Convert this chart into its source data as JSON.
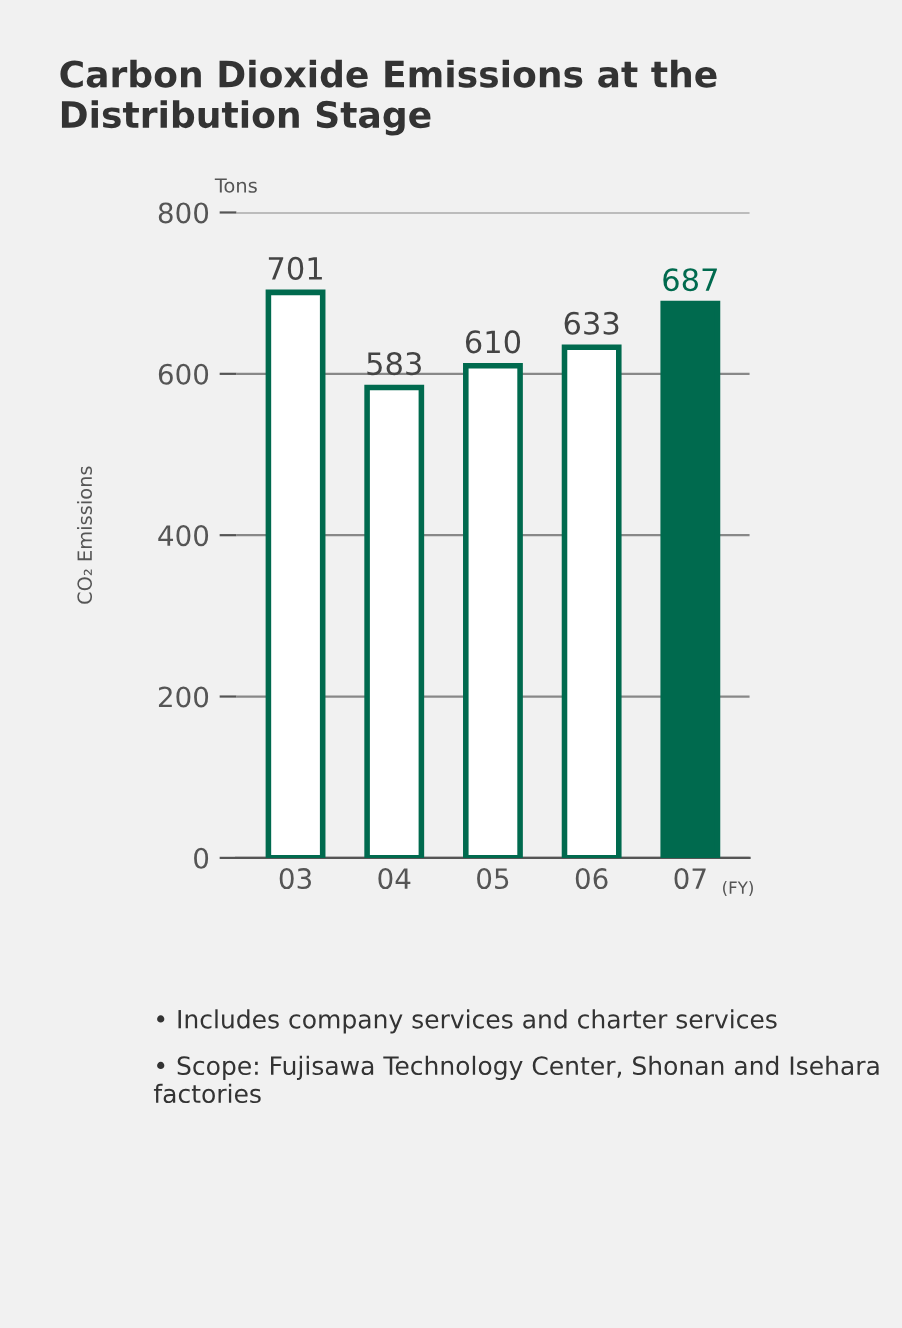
{
  "chart_data": {
    "type": "bar",
    "title": "Carbon Dioxide Emissions at the Distribution Stage",
    "ylabel": "CO₂ Emissions",
    "categories": [
      "03",
      "04",
      "05",
      "06",
      "07"
    ],
    "values": [
      701,
      583,
      610,
      633,
      687
    ],
    "colors": [
      "#ffffff",
      "#ffffff",
      "#ffffff",
      "#ffffff",
      "#006a4e"
    ],
    "ylim": [
      0,
      800
    ],
    "yticks": [
      0,
      200,
      400,
      600,
      800
    ],
    "grid": "y",
    "data_labels": true,
    "annotations": [
      "Tons",
      "(FY)",
      "• Includes company services and charter services",
      "• Scope: Fujisawa Technology Center, Shonan and Isehara factories"
    ]
  }
}
